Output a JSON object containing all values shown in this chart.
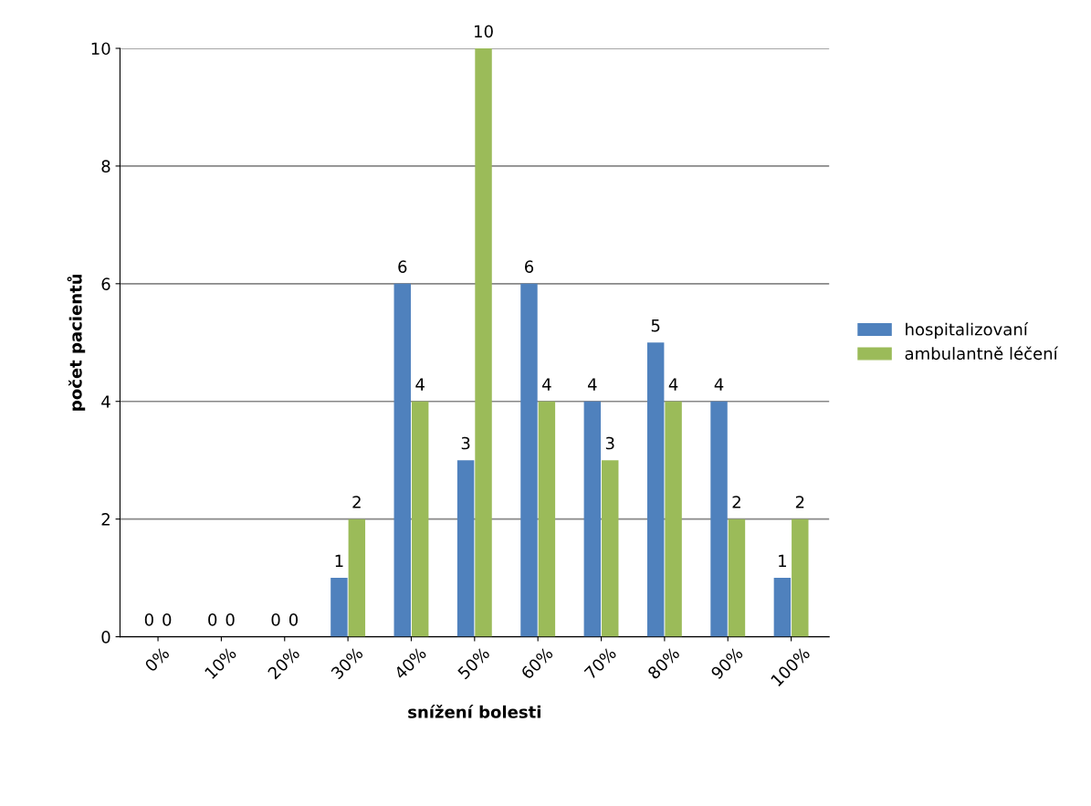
{
  "chart_data": {
    "type": "bar",
    "xlabel": "snížení bolesti",
    "ylabel": "počet pacientů",
    "categories": [
      "0%",
      "10%",
      "20%",
      "30%",
      "40%",
      "50%",
      "60%",
      "70%",
      "80%",
      "90%",
      "100%"
    ],
    "series": [
      {
        "name": "hospitalizovaní",
        "color": "#4f81bd",
        "values": [
          0,
          0,
          0,
          1,
          6,
          3,
          6,
          4,
          5,
          4,
          1
        ]
      },
      {
        "name": "ambulantně léčení",
        "color": "#9bbb59",
        "values": [
          0,
          0,
          0,
          2,
          4,
          10,
          4,
          3,
          4,
          2,
          2
        ]
      }
    ],
    "ylim": [
      0,
      10
    ],
    "yticks": [
      0,
      2,
      4,
      6,
      8,
      10
    ],
    "grid": "y",
    "legend": "right",
    "data_labels": true
  }
}
